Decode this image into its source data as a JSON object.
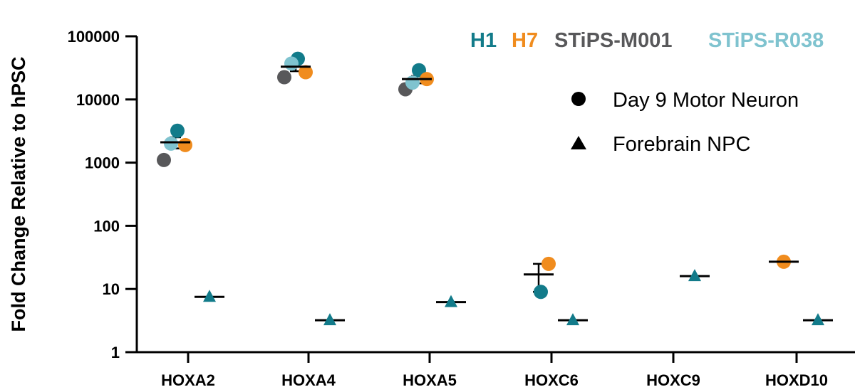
{
  "chart_data": {
    "type": "scatter",
    "title": "",
    "ylabel": "Fold Change Relative to  hPSC",
    "yscale": "log",
    "ylim": [
      1,
      100000
    ],
    "yticks": [
      1,
      10,
      100,
      1000,
      10000,
      100000
    ],
    "ytick_labels": [
      "1",
      "10",
      "100",
      "1000",
      "10000",
      "100000"
    ],
    "categories": [
      "HOXA2",
      "HOXA4",
      "HOXA5",
      "HOXC6",
      "HOXC9",
      "HOXD10"
    ],
    "cell_lines": [
      {
        "name": "H1",
        "color": "#127b8a"
      },
      {
        "name": "H7",
        "color": "#f08c1e"
      },
      {
        "name": "STiPS-M001",
        "color": "#58585a"
      },
      {
        "name": "STiPS-R038",
        "color": "#7fc3cf"
      }
    ],
    "legend": {
      "position": "top-right",
      "entries": [
        {
          "label": "Day 9 Motor Neuron",
          "marker": "circle"
        },
        {
          "label": "Forebrain NPC",
          "marker": "triangle"
        }
      ]
    },
    "groups": [
      {
        "category": "HOXA2",
        "condition": "Day 9 Motor Neuron",
        "mean": 2100,
        "sem_low": 1680,
        "sem_high": 2520,
        "points": [
          {
            "line": "H1",
            "value": 3200
          },
          {
            "line": "H7",
            "value": 1900
          },
          {
            "line": "STiPS-M001",
            "value": 1100
          },
          {
            "line": "STiPS-R038",
            "value": 2000
          }
        ]
      },
      {
        "category": "HOXA2",
        "condition": "Forebrain NPC",
        "mean": 7.5,
        "points": [
          {
            "line": "H1",
            "value": 7.5
          }
        ]
      },
      {
        "category": "HOXA4",
        "condition": "Day 9 Motor Neuron",
        "mean": 33000,
        "sem_low": 28000,
        "sem_high": 38500,
        "points": [
          {
            "line": "H1",
            "value": 44000
          },
          {
            "line": "H7",
            "value": 27000
          },
          {
            "line": "STiPS-M001",
            "value": 22500
          },
          {
            "line": "STiPS-R038",
            "value": 37000
          }
        ]
      },
      {
        "category": "HOXA4",
        "condition": "Forebrain NPC",
        "mean": 3.2,
        "points": [
          {
            "line": "H1",
            "value": 3.2
          }
        ]
      },
      {
        "category": "HOXA5",
        "condition": "Day 9 Motor Neuron",
        "mean": 21000,
        "sem_low": 18000,
        "sem_high": 23500,
        "points": [
          {
            "line": "H1",
            "value": 29000
          },
          {
            "line": "H7",
            "value": 21000
          },
          {
            "line": "STiPS-M001",
            "value": 14500
          },
          {
            "line": "STiPS-R038",
            "value": 18500
          }
        ]
      },
      {
        "category": "HOXA5",
        "condition": "Forebrain NPC",
        "mean": 6.2,
        "points": [
          {
            "line": "H1",
            "value": 6.2
          }
        ]
      },
      {
        "category": "HOXC6",
        "condition": "Day 9 Motor Neuron",
        "mean": 17,
        "sem_low": 9,
        "sem_high": 25,
        "points": [
          {
            "line": "H1",
            "value": 9
          },
          {
            "line": "H7",
            "value": 25
          }
        ]
      },
      {
        "category": "HOXC6",
        "condition": "Forebrain NPC",
        "mean": 3.2,
        "points": [
          {
            "line": "H1",
            "value": 3.2
          }
        ]
      },
      {
        "category": "HOXC9",
        "condition": "Forebrain NPC",
        "mean": 16,
        "points": [
          {
            "line": "H1",
            "value": 16
          }
        ]
      },
      {
        "category": "HOXD10",
        "condition": "Day 9 Motor Neuron",
        "mean": 27,
        "points": [
          {
            "line": "H7",
            "value": 27
          }
        ]
      },
      {
        "category": "HOXD10",
        "condition": "Forebrain NPC",
        "mean": 3.2,
        "points": [
          {
            "line": "H1",
            "value": 3.2
          }
        ]
      }
    ]
  }
}
